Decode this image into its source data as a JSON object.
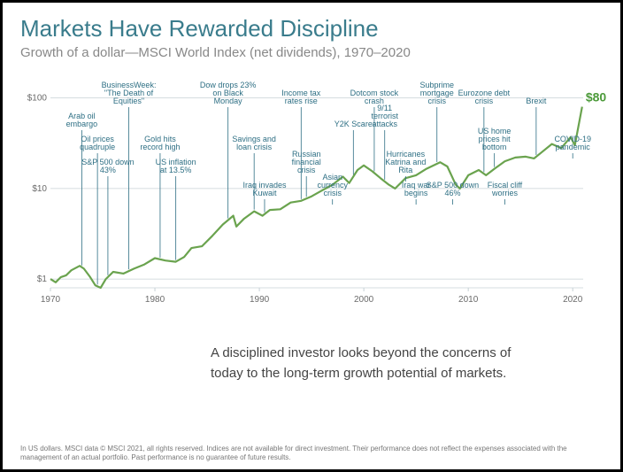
{
  "title": "Markets Have Rewarded Discipline",
  "subtitle": "Growth of a dollar—MSCI World Index (net dividends), 1970–2020",
  "caption": "A disciplined investor looks beyond the concerns of today to the long-term growth potential of markets.",
  "footnote": "In US dollars. MSCI data © MSCI 2021, all rights reserved. Indices are not available for direct investment. Their performance does not reflect the expenses associated with the management of an actual portfolio. Past performance is no guarantee of future results.",
  "colors": {
    "title": "#3a7c8c",
    "subtitle": "#888888",
    "line": "#6aa34e",
    "grid": "#c7d1d6",
    "axis_font": "#6a6a6a",
    "event_font": "#2e6f84",
    "event_tick": "#2e6f84",
    "end_value": "#4c9a3a"
  },
  "chart": {
    "type": "line",
    "scale_y": "log",
    "xlim": [
      1970,
      2021
    ],
    "ylim": [
      0.8,
      130
    ],
    "x_ticks": [
      1970,
      1980,
      1990,
      2000,
      2010,
      2020
    ],
    "y_ticks": [
      1,
      10,
      100
    ],
    "y_tick_labels": [
      "$1",
      "$10",
      "$100"
    ],
    "axis_fontsize": 10,
    "event_fontsize": 9,
    "end_value_label": "$80",
    "series": [
      {
        "x": 1970.0,
        "y": 1.0
      },
      {
        "x": 1970.5,
        "y": 0.92
      },
      {
        "x": 1971.0,
        "y": 1.05
      },
      {
        "x": 1971.5,
        "y": 1.1
      },
      {
        "x": 1972.0,
        "y": 1.25
      },
      {
        "x": 1972.8,
        "y": 1.4
      },
      {
        "x": 1973.2,
        "y": 1.3
      },
      {
        "x": 1973.8,
        "y": 1.05
      },
      {
        "x": 1974.3,
        "y": 0.85
      },
      {
        "x": 1974.8,
        "y": 0.8
      },
      {
        "x": 1975.3,
        "y": 1.0
      },
      {
        "x": 1976.0,
        "y": 1.2
      },
      {
        "x": 1977.0,
        "y": 1.15
      },
      {
        "x": 1978.0,
        "y": 1.3
      },
      {
        "x": 1979.0,
        "y": 1.45
      },
      {
        "x": 1980.0,
        "y": 1.7
      },
      {
        "x": 1981.0,
        "y": 1.6
      },
      {
        "x": 1982.0,
        "y": 1.55
      },
      {
        "x": 1982.8,
        "y": 1.75
      },
      {
        "x": 1983.5,
        "y": 2.2
      },
      {
        "x": 1984.5,
        "y": 2.3
      },
      {
        "x": 1985.5,
        "y": 3.0
      },
      {
        "x": 1986.5,
        "y": 4.0
      },
      {
        "x": 1987.5,
        "y": 5.0
      },
      {
        "x": 1987.8,
        "y": 3.8
      },
      {
        "x": 1988.5,
        "y": 4.6
      },
      {
        "x": 1989.5,
        "y": 5.6
      },
      {
        "x": 1990.3,
        "y": 5.0
      },
      {
        "x": 1991.0,
        "y": 5.8
      },
      {
        "x": 1992.0,
        "y": 5.9
      },
      {
        "x": 1993.0,
        "y": 7.0
      },
      {
        "x": 1994.0,
        "y": 7.3
      },
      {
        "x": 1995.0,
        "y": 8.2
      },
      {
        "x": 1996.0,
        "y": 9.5
      },
      {
        "x": 1997.0,
        "y": 11.0
      },
      {
        "x": 1998.0,
        "y": 13.5
      },
      {
        "x": 1998.6,
        "y": 11.5
      },
      {
        "x": 1999.4,
        "y": 16.0
      },
      {
        "x": 2000.0,
        "y": 18.0
      },
      {
        "x": 2000.8,
        "y": 15.5
      },
      {
        "x": 2001.6,
        "y": 13.0
      },
      {
        "x": 2002.4,
        "y": 11.0
      },
      {
        "x": 2003.0,
        "y": 10.0
      },
      {
        "x": 2004.0,
        "y": 13.0
      },
      {
        "x": 2005.0,
        "y": 14.0
      },
      {
        "x": 2006.0,
        "y": 16.5
      },
      {
        "x": 2007.3,
        "y": 19.5
      },
      {
        "x": 2008.0,
        "y": 17.5
      },
      {
        "x": 2008.8,
        "y": 11.0
      },
      {
        "x": 2009.2,
        "y": 10.0
      },
      {
        "x": 2010.0,
        "y": 14.0
      },
      {
        "x": 2011.0,
        "y": 16.0
      },
      {
        "x": 2011.7,
        "y": 14.0
      },
      {
        "x": 2012.5,
        "y": 16.5
      },
      {
        "x": 2013.5,
        "y": 20.0
      },
      {
        "x": 2014.5,
        "y": 22.0
      },
      {
        "x": 2015.5,
        "y": 22.5
      },
      {
        "x": 2016.3,
        "y": 21.5
      },
      {
        "x": 2017.0,
        "y": 25.0
      },
      {
        "x": 2018.0,
        "y": 31.0
      },
      {
        "x": 2018.9,
        "y": 28.0
      },
      {
        "x": 2019.8,
        "y": 37.0
      },
      {
        "x": 2020.2,
        "y": 30.0
      },
      {
        "x": 2020.9,
        "y": 80.0
      }
    ],
    "events": [
      {
        "x": 1973.0,
        "label": "Arab oil embargo",
        "row": 1
      },
      {
        "x": 1974.5,
        "label": "Oil prices quadruple",
        "row": 2
      },
      {
        "x": 1975.5,
        "label": "S&P 500 down 43%",
        "row": 3
      },
      {
        "x": 1977.5,
        "label": "BusinessWeek: \"The Death of Equities\"",
        "row": 0
      },
      {
        "x": 1980.5,
        "label": "Gold hits record high",
        "row": 2
      },
      {
        "x": 1982.0,
        "label": "US inflation at 13.5%",
        "row": 3
      },
      {
        "x": 1987.0,
        "label": "Dow drops 23% on Black Monday",
        "row": 0
      },
      {
        "x": 1989.5,
        "label": "Savings and loan crisis",
        "row": 2
      },
      {
        "x": 1990.5,
        "label": "Iraq invades Kuwait",
        "row": 4
      },
      {
        "x": 1994.0,
        "label": "Income tax rates rise",
        "row": 0
      },
      {
        "x": 1994.5,
        "label": "Russian financial crisis",
        "row": 3
      },
      {
        "x": 1997.0,
        "label": "Asian currency crisis",
        "row": 4
      },
      {
        "x": 1999.0,
        "label": "Y2K Scare",
        "row": 1
      },
      {
        "x": 2001.0,
        "label": "Dotcom stock crash",
        "row": 0
      },
      {
        "x": 2002.0,
        "label": "9/11 terrorist attacks",
        "row": 1
      },
      {
        "x": 2004.0,
        "label": "Hurricanes Katrina and Rita",
        "row": 3
      },
      {
        "x": 2005.0,
        "label": "Iraq war begins",
        "row": 4
      },
      {
        "x": 2007.0,
        "label": "Subprime mortgage crisis",
        "row": 0
      },
      {
        "x": 2008.5,
        "label": "S&P 500 down 46%",
        "row": 4
      },
      {
        "x": 2011.5,
        "label": "Eurozone debt crisis",
        "row": 0
      },
      {
        "x": 2012.5,
        "label": "US home prices hit bottom",
        "row": 2
      },
      {
        "x": 2013.5,
        "label": "Fiscal cliff worries",
        "row": 4
      },
      {
        "x": 2016.5,
        "label": "Brexit",
        "row": 0
      },
      {
        "x": 2020.0,
        "label": "COVID-19 pandemic",
        "row": 2
      }
    ]
  }
}
